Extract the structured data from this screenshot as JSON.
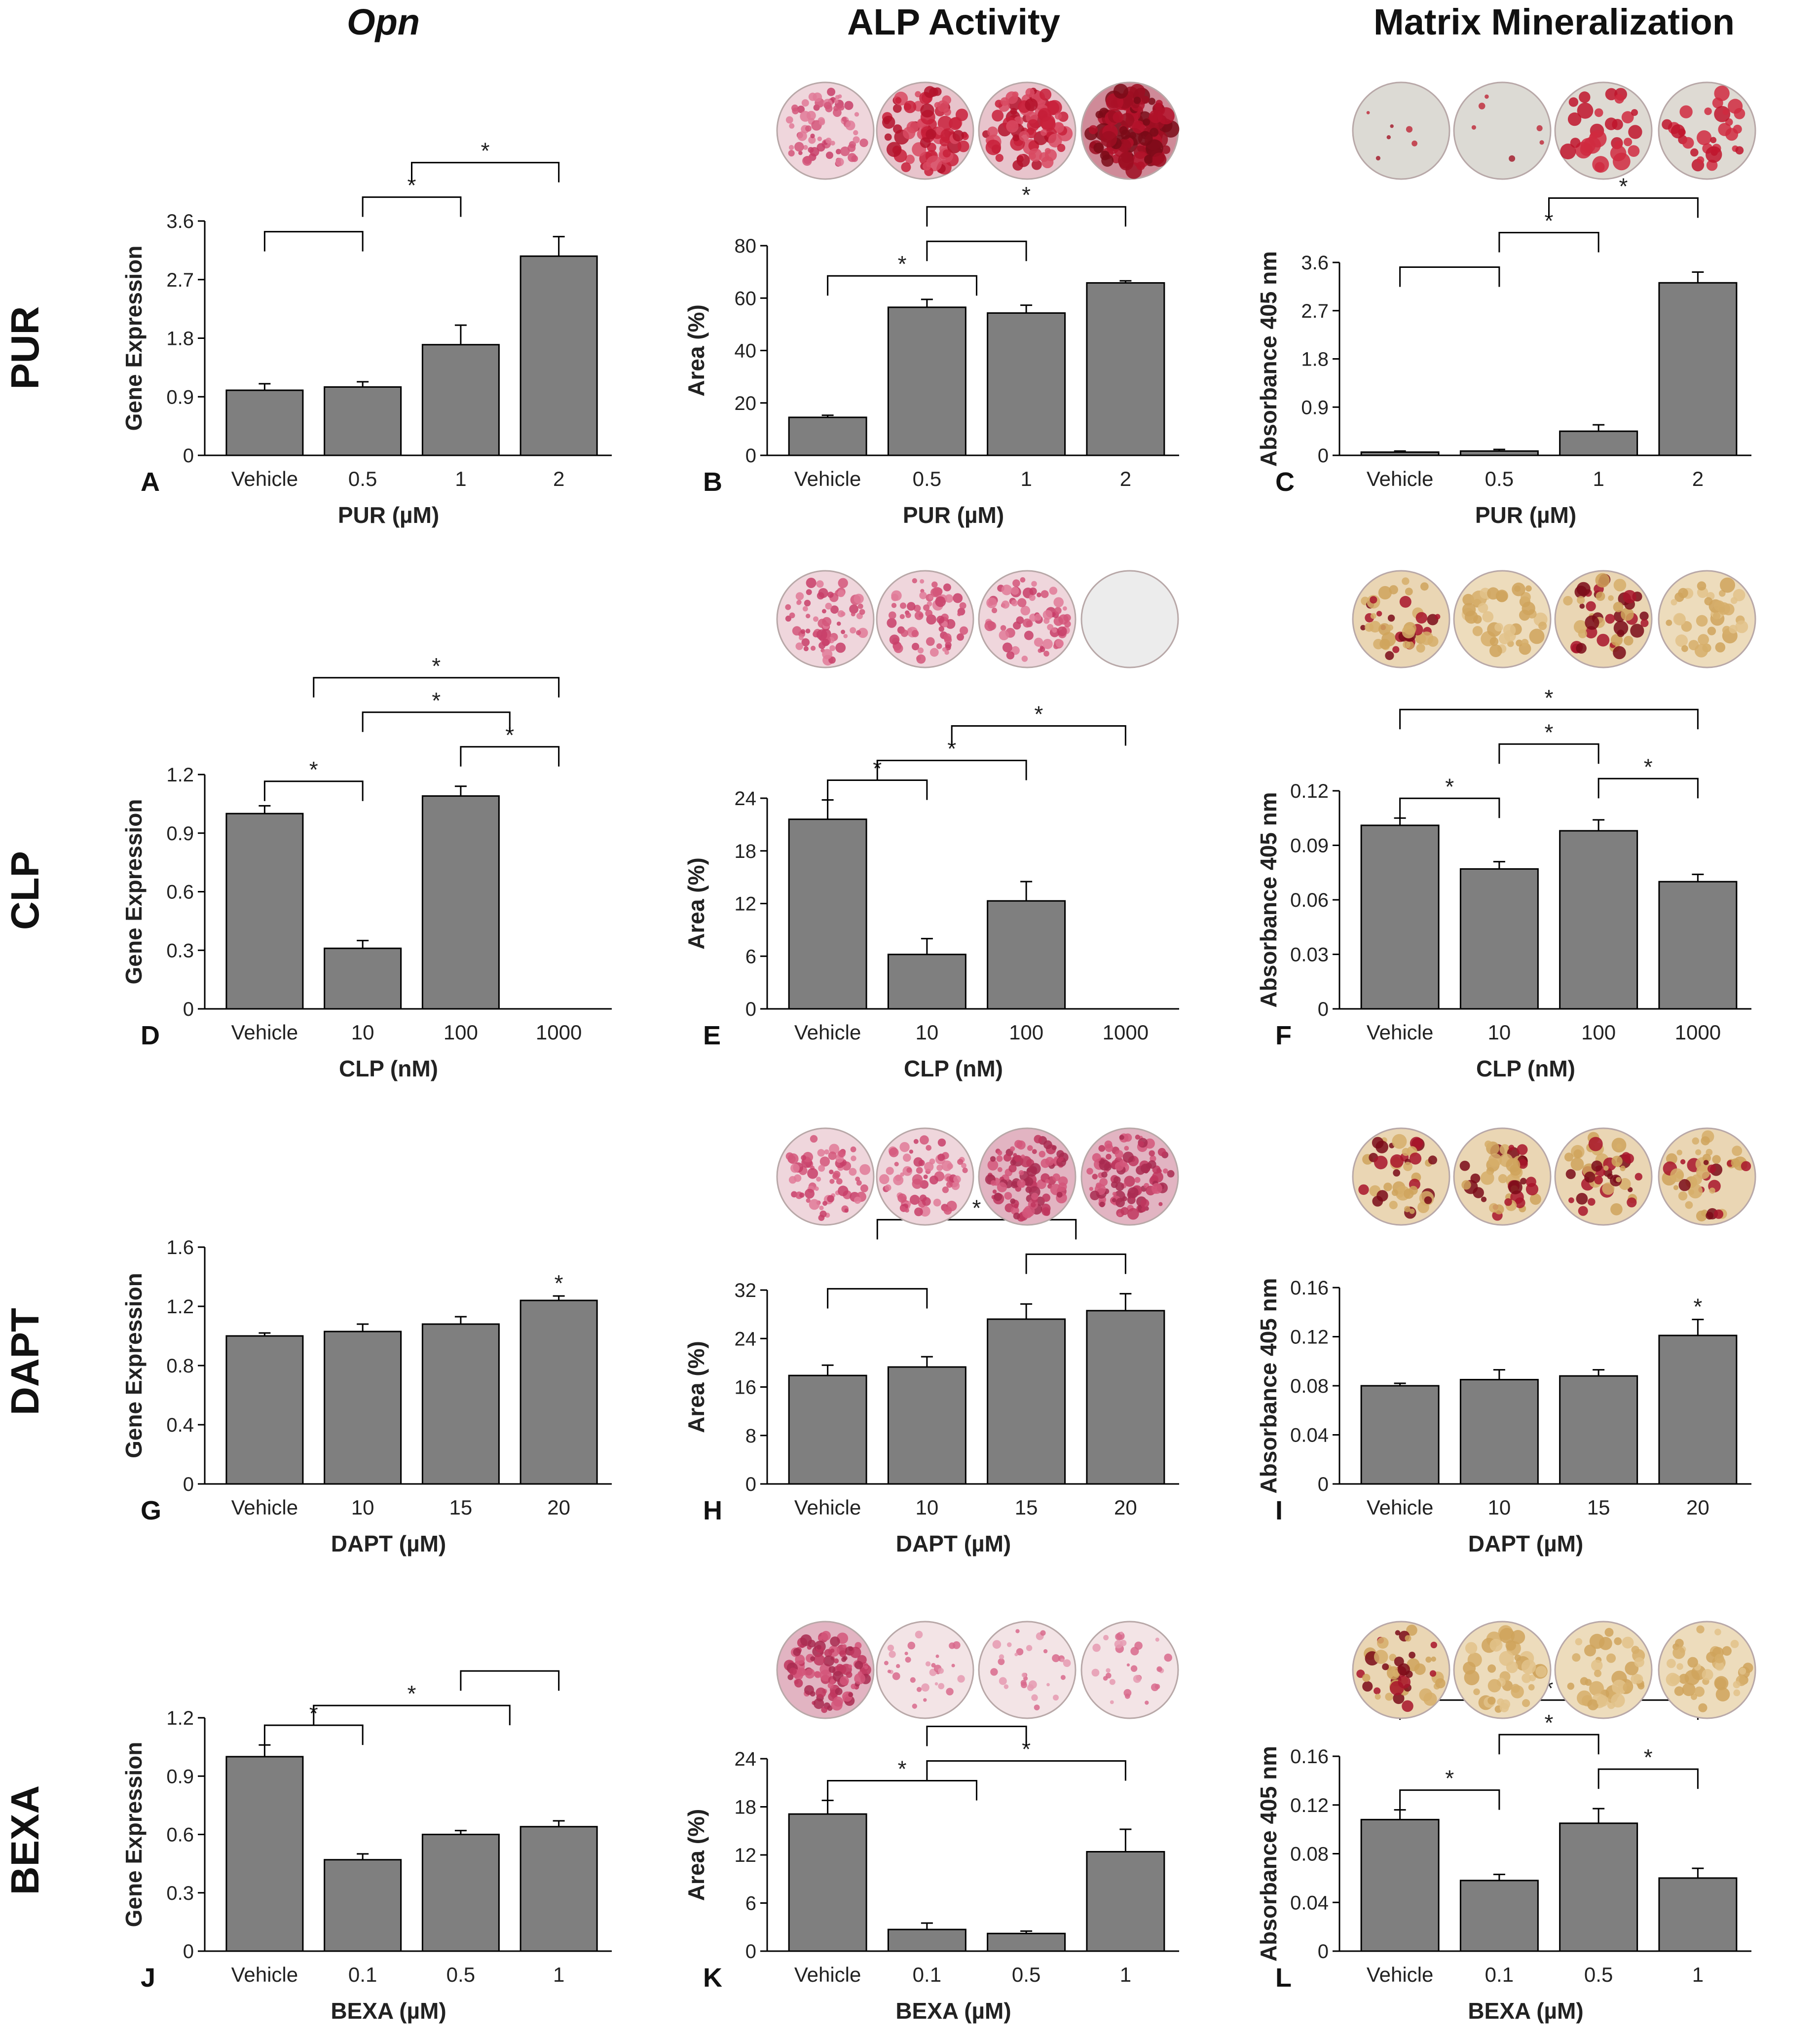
{
  "column_titles": [
    "Opn",
    "ALP Activity",
    "Matrix Mineralization"
  ],
  "row_labels": [
    "PUR",
    "CLP",
    "DAPT",
    "BEXA"
  ],
  "colors": {
    "bar": "#7f7f7f",
    "axis": "#000000",
    "stain_red": "#b3122a",
    "stain_pink": "#d8547a",
    "stain_beige": "#e6c690"
  },
  "chart_data": [
    {
      "id": "A",
      "type": "bar",
      "ylabel": "Gene Expression",
      "xlabel": "PUR (µM)",
      "categories": [
        "Vehicle",
        "0.5",
        "1",
        "2"
      ],
      "values": [
        1.0,
        1.05,
        1.7,
        3.06
      ],
      "errors": [
        0.1,
        0.08,
        0.3,
        0.3
      ],
      "ylim": [
        0,
        3.6
      ],
      "ticks": [
        "0",
        "0.9",
        "1.8",
        "2.7",
        "3.6"
      ],
      "brackets": [
        {
          "from": 0,
          "to": 1,
          "star": ""
        },
        {
          "from": 1,
          "to": 2,
          "star": "*"
        },
        {
          "from": 1.5,
          "to": 3,
          "star": "*"
        }
      ],
      "wells": null
    },
    {
      "id": "B",
      "type": "bar",
      "ylabel": "Area (%)",
      "xlabel": "PUR (µM)",
      "categories": [
        "Vehicle",
        "0.5",
        "1",
        "2"
      ],
      "values": [
        14.5,
        56.5,
        54.3,
        65.8
      ],
      "errors": [
        0.8,
        3.0,
        3.0,
        0.8
      ],
      "ylim": [
        0,
        80
      ],
      "ticks": [
        "0",
        "20",
        "40",
        "60",
        "80"
      ],
      "brackets": [
        {
          "from": 0,
          "to": 1.5,
          "star": "*"
        },
        {
          "from": 1,
          "to": 2,
          "star": ""
        },
        {
          "from": 1,
          "to": 3,
          "star": "*"
        }
      ],
      "wells": [
        "pink",
        "red",
        "red",
        "darkred"
      ]
    },
    {
      "id": "C",
      "type": "bar",
      "ylabel": "Absorbance 405 nm",
      "xlabel": "PUR (µM)",
      "categories": [
        "Vehicle",
        "0.5",
        "1",
        "2"
      ],
      "values": [
        0.06,
        0.08,
        0.45,
        3.22
      ],
      "errors": [
        0.02,
        0.03,
        0.12,
        0.2
      ],
      "ylim": [
        0,
        3.6
      ],
      "ticks": [
        "0",
        "0.9",
        "1.8",
        "2.7",
        "3.6"
      ],
      "brackets": [
        {
          "from": 0,
          "to": 1,
          "star": ""
        },
        {
          "from": 1,
          "to": 2,
          "star": "*"
        },
        {
          "from": 1.5,
          "to": 3,
          "star": "*"
        }
      ],
      "wells": [
        "grey",
        "grey",
        "redspots",
        "redspots"
      ]
    },
    {
      "id": "D",
      "type": "bar",
      "ylabel": "Gene Expression",
      "xlabel": "CLP (nM)",
      "categories": [
        "Vehicle",
        "10",
        "100",
        "1000"
      ],
      "values": [
        1.0,
        0.31,
        1.09,
        0.0
      ],
      "errors": [
        0.04,
        0.04,
        0.05,
        0
      ],
      "ylim": [
        0,
        1.2
      ],
      "ticks": [
        "0",
        "0.3",
        "0.6",
        "0.9",
        "1.2"
      ],
      "brackets": [
        {
          "from": 0,
          "to": 1,
          "star": "*"
        },
        {
          "from": 2,
          "to": 3,
          "star": "*"
        },
        {
          "from": 1,
          "to": 2.5,
          "star": "*"
        },
        {
          "from": 0.5,
          "to": 3,
          "star": "*"
        }
      ],
      "wells": null
    },
    {
      "id": "E",
      "type": "bar",
      "ylabel": "Area (%)",
      "xlabel": "CLP (nM)",
      "categories": [
        "Vehicle",
        "10",
        "100",
        "1000"
      ],
      "values": [
        21.6,
        6.2,
        12.3,
        0.0
      ],
      "errors": [
        2.2,
        1.8,
        2.2,
        0
      ],
      "ylim": [
        0,
        24
      ],
      "ticks": [
        "0",
        "6",
        "12",
        "18",
        "24"
      ],
      "brackets": [
        {
          "from": 0,
          "to": 1,
          "star": "*"
        },
        {
          "from": 0.5,
          "to": 2,
          "star": "*"
        },
        {
          "from": 1.25,
          "to": 3,
          "star": "*"
        }
      ],
      "wells": [
        "pink",
        "pink",
        "pink",
        "blank"
      ]
    },
    {
      "id": "F",
      "type": "bar",
      "ylabel": "Absorbance 405 nm",
      "xlabel": "CLP (nM)",
      "categories": [
        "Vehicle",
        "10",
        "100",
        "1000"
      ],
      "values": [
        0.101,
        0.077,
        0.098,
        0.07
      ],
      "errors": [
        0.004,
        0.004,
        0.006,
        0.004
      ],
      "ylim": [
        0,
        0.12
      ],
      "ticks": [
        "0",
        "0.03",
        "0.06",
        "0.09",
        "0.12"
      ],
      "brackets": [
        {
          "from": 0,
          "to": 1,
          "star": "*"
        },
        {
          "from": 2,
          "to": 3,
          "star": "*"
        },
        {
          "from": 1,
          "to": 2,
          "star": "*"
        },
        {
          "from": 0,
          "to": 3,
          "star": "*"
        }
      ],
      "wells": [
        "beigered",
        "beige",
        "beigered",
        "beige"
      ]
    },
    {
      "id": "G",
      "type": "bar",
      "ylabel": "Gene Expression",
      "xlabel": "DAPT (µM)",
      "categories": [
        "Vehicle",
        "10",
        "15",
        "20"
      ],
      "values": [
        1.0,
        1.03,
        1.08,
        1.24
      ],
      "errors": [
        0.02,
        0.05,
        0.05,
        0.03
      ],
      "ylim": [
        0,
        1.6
      ],
      "ticks": [
        "0",
        "0.4",
        "0.8",
        "1.2",
        "1.6"
      ],
      "brackets": [],
      "stars": [
        {
          "at": 3,
          "star": "*"
        }
      ],
      "wells": null
    },
    {
      "id": "H",
      "type": "bar",
      "ylabel": "Area (%)",
      "xlabel": "DAPT (µM)",
      "categories": [
        "Vehicle",
        "10",
        "15",
        "20"
      ],
      "values": [
        17.9,
        19.3,
        27.2,
        28.6
      ],
      "errors": [
        1.7,
        1.7,
        2.5,
        2.8
      ],
      "ylim": [
        0,
        32
      ],
      "ticks": [
        "0",
        "8",
        "16",
        "24",
        "32"
      ],
      "brackets": [
        {
          "from": 0,
          "to": 1,
          "star": ""
        },
        {
          "from": 2,
          "to": 3,
          "star": ""
        },
        {
          "from": 0.5,
          "to": 2.5,
          "star": "*"
        }
      ],
      "wells": [
        "pink",
        "pink",
        "pinkdense",
        "pinkdense"
      ]
    },
    {
      "id": "I",
      "type": "bar",
      "ylabel": "Absorbance 405 nm",
      "xlabel": "DAPT (µM)",
      "categories": [
        "Vehicle",
        "10",
        "15",
        "20"
      ],
      "values": [
        0.08,
        0.085,
        0.088,
        0.121
      ],
      "errors": [
        0.002,
        0.008,
        0.005,
        0.013
      ],
      "ylim": [
        0,
        0.16
      ],
      "ticks": [
        "0",
        "0.04",
        "0.08",
        "0.12",
        "0.16"
      ],
      "brackets": [],
      "stars": [
        {
          "at": 3,
          "star": "*"
        }
      ],
      "wells": [
        "beigered",
        "beigered",
        "beigered",
        "beigered"
      ]
    },
    {
      "id": "J",
      "type": "bar",
      "ylabel": "Gene Expression",
      "xlabel": "BEXA (µM)",
      "categories": [
        "Vehicle",
        "0.1",
        "0.5",
        "1"
      ],
      "values": [
        1.0,
        0.47,
        0.6,
        0.64
      ],
      "errors": [
        0.06,
        0.03,
        0.02,
        0.03
      ],
      "ylim": [
        0,
        1.2
      ],
      "ticks": [
        "0",
        "0.3",
        "0.6",
        "0.9",
        "1.2"
      ],
      "brackets": [
        {
          "from": 0,
          "to": 1,
          "star": "*"
        },
        {
          "from": 0.5,
          "to": 2.5,
          "star": "*"
        },
        {
          "from": 2,
          "to": 3,
          "star": ""
        }
      ],
      "wells": null
    },
    {
      "id": "K",
      "type": "bar",
      "ylabel": "Area (%)",
      "xlabel": "BEXA (µM)",
      "categories": [
        "Vehicle",
        "0.1",
        "0.5",
        "1"
      ],
      "values": [
        17.1,
        2.7,
        2.2,
        12.4
      ],
      "errors": [
        1.7,
        0.8,
        0.3,
        2.8
      ],
      "ylim": [
        0,
        24
      ],
      "ticks": [
        "0",
        "6",
        "12",
        "18",
        "24"
      ],
      "brackets": [
        {
          "from": 0,
          "to": 1.5,
          "star": "*"
        },
        {
          "from": 1,
          "to": 3,
          "star": "*"
        },
        {
          "from": 1,
          "to": 2,
          "star": ""
        }
      ],
      "wells": [
        "pinkdense",
        "pinklight",
        "pinklight",
        "pinklight"
      ]
    },
    {
      "id": "L",
      "type": "bar",
      "ylabel": "Absorbance 405 nm",
      "xlabel": "BEXA (µM)",
      "categories": [
        "Vehicle",
        "0.1",
        "0.5",
        "1"
      ],
      "values": [
        0.108,
        0.058,
        0.105,
        0.06
      ],
      "errors": [
        0.008,
        0.005,
        0.012,
        0.008
      ],
      "ylim": [
        0,
        0.16
      ],
      "ticks": [
        "0",
        "0.04",
        "0.08",
        "0.12",
        "0.16"
      ],
      "brackets": [
        {
          "from": 0,
          "to": 1,
          "star": "*"
        },
        {
          "from": 2,
          "to": 3,
          "star": "*"
        },
        {
          "from": 1,
          "to": 2,
          "star": "*"
        },
        {
          "from": 0,
          "to": 3,
          "star": "*"
        }
      ],
      "wells": [
        "beigered",
        "beige",
        "beige",
        "beige"
      ]
    }
  ]
}
